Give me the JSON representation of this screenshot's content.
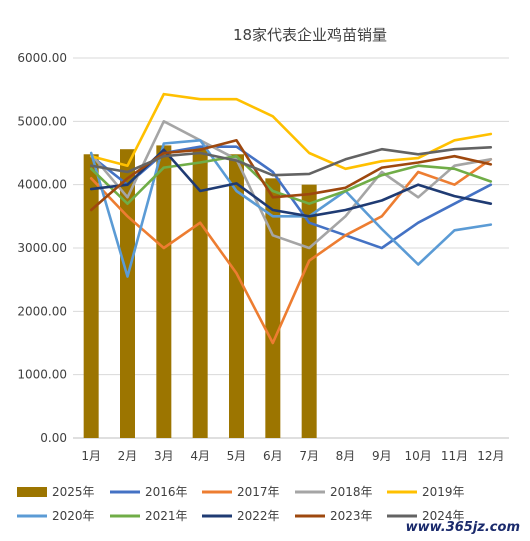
{
  "watermark": "www.365jz.com",
  "chart_data": {
    "type": "bar+line",
    "title": "18家代表企业鸡苗销量",
    "categories": [
      "1月",
      "2月",
      "3月",
      "4月",
      "5月",
      "6月",
      "7月",
      "8月",
      "9月",
      "10月",
      "11月",
      "12月"
    ],
    "ylim": [
      0,
      6000
    ],
    "yticks": [
      "0.00",
      "1000.00",
      "2000.00",
      "3000.00",
      "4000.00",
      "5000.00",
      "6000.00"
    ],
    "ytick_values": [
      0,
      1000,
      2000,
      3000,
      4000,
      5000,
      6000
    ],
    "grid": true,
    "legend_position": "bottom",
    "bar_series": {
      "name": "2025年",
      "color": "#9c7500",
      "values": [
        4480,
        4560,
        4620,
        4600,
        4480,
        4100,
        4000
      ]
    },
    "series": [
      {
        "name": "2016年",
        "color": "#4472c4",
        "values": [
          4450,
          4000,
          4500,
          4600,
          4600,
          4200,
          3400,
          3200,
          3000,
          3400,
          3700,
          4000
        ]
      },
      {
        "name": "2017年",
        "color": "#ed7d31",
        "values": [
          4100,
          3500,
          3000,
          3400,
          2600,
          1500,
          2800,
          3200,
          3500,
          4200,
          4000,
          4400
        ]
      },
      {
        "name": "2018年",
        "color": "#a5a5a5",
        "values": [
          4480,
          3800,
          5000,
          4700,
          4400,
          3200,
          3000,
          3500,
          4200,
          3800,
          4300,
          4400
        ]
      },
      {
        "name": "2019年",
        "color": "#ffc000",
        "values": [
          4450,
          4300,
          5430,
          5350,
          5350,
          5080,
          4500,
          4250,
          4370,
          4420,
          4700,
          4800
        ]
      },
      {
        "name": "2020年",
        "color": "#5b9bd5",
        "values": [
          4500,
          2550,
          4650,
          4700,
          3900,
          3500,
          3500,
          3900,
          3300,
          2740,
          3280,
          3370
        ]
      },
      {
        "name": "2021年",
        "color": "#70ad47",
        "values": [
          4250,
          3700,
          4270,
          4350,
          4450,
          3900,
          3700,
          3900,
          4150,
          4300,
          4250,
          4050
        ]
      },
      {
        "name": "2022年",
        "color": "#1f3b73",
        "values": [
          3930,
          4000,
          4550,
          3900,
          4020,
          3600,
          3500,
          3600,
          3750,
          4000,
          3820,
          3700
        ]
      },
      {
        "name": "2023年",
        "color": "#9e480e",
        "values": [
          3600,
          4100,
          4500,
          4550,
          4700,
          3800,
          3850,
          3950,
          4270,
          4350,
          4450,
          4320
        ]
      },
      {
        "name": "2024年",
        "color": "#636363",
        "values": [
          4300,
          4200,
          4450,
          4500,
          4380,
          4150,
          4170,
          4400,
          4560,
          4480,
          4560,
          4590
        ]
      }
    ]
  }
}
